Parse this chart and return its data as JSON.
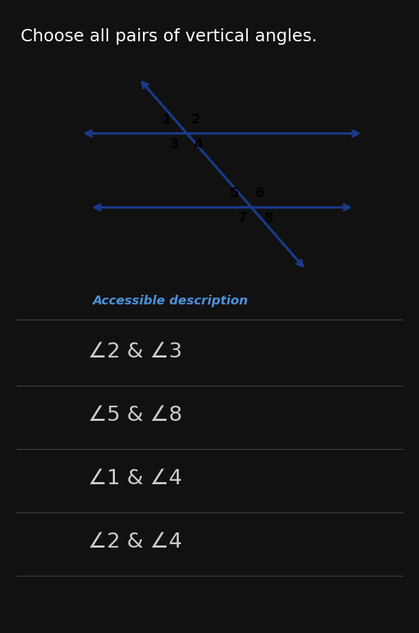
{
  "title": "Choose all pairs of vertical angles.",
  "title_fontsize": 18,
  "title_color": "#ffffff",
  "background_color": "#111111",
  "diagram_bg": "#ffffff",
  "line_color": "#1a3a8c",
  "line_width": 2.5,
  "label_fontsize": 14,
  "options_fontsize": 22,
  "accessible_text": "Accessible description",
  "accessible_color": "#4a90d9",
  "options": [
    "∠2 & ∠3",
    "∠5 & ∠8",
    "∠1 & ∠4",
    "∠2 & ∠4"
  ],
  "checkbox_color": "#888888"
}
